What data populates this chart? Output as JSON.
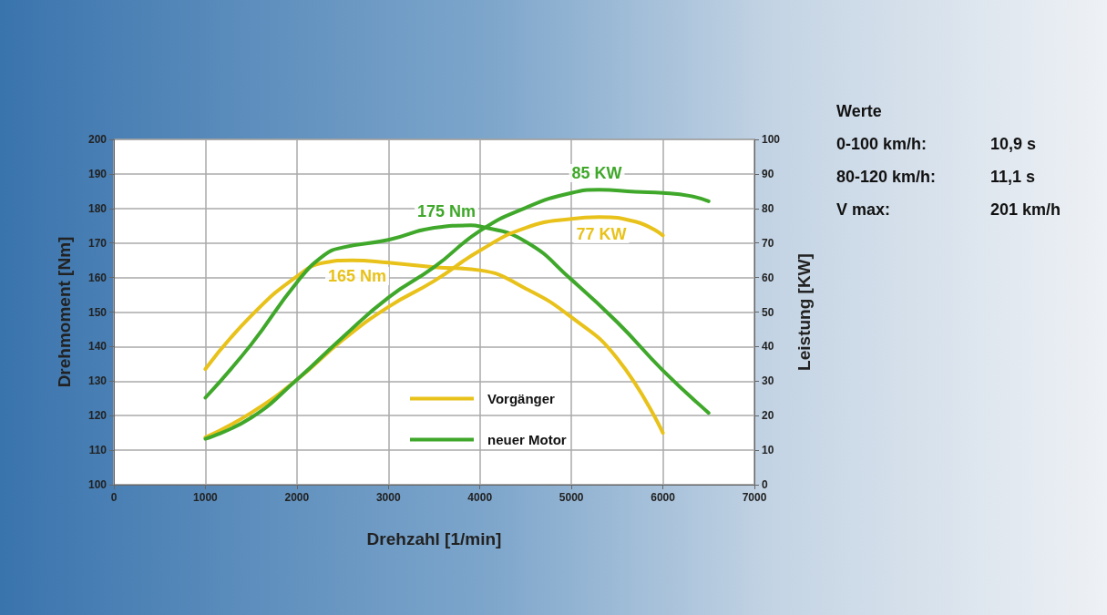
{
  "chart_data": {
    "type": "line",
    "xlabel": "Drehzahl [1/min]",
    "ylabel": "Drehmoment [Nm]",
    "y2label": "Leistung [KW]",
    "xlim": [
      0,
      7000
    ],
    "xticks": [
      0,
      1000,
      2000,
      3000,
      4000,
      5000,
      6000,
      7000
    ],
    "ylim": [
      100,
      200
    ],
    "yticks": [
      100,
      110,
      120,
      130,
      140,
      150,
      160,
      170,
      180,
      190,
      200
    ],
    "y2lim": [
      0,
      100
    ],
    "y2ticks": [
      0,
      10,
      20,
      30,
      40,
      50,
      60,
      70,
      80,
      90,
      100
    ],
    "grid": true,
    "legend": "bottom",
    "marker": "none",
    "line_style": "solid",
    "series": [
      {
        "name": "Vorgänger",
        "color": "#e8c21a",
        "x": [
          1000,
          1500,
          2000,
          2300,
          2600,
          3000,
          3500,
          4000,
          4500,
          5000,
          5500,
          6000
        ],
        "values": [
          133.5,
          148.9,
          160.3,
          164.3,
          165.0,
          164.3,
          163.0,
          162.1,
          156.8,
          148.5,
          136.6,
          115.0
        ]
      },
      {
        "name": "neuer Motor",
        "color": "#3fa82a",
        "x": [
          1000,
          1500,
          2000,
          2300,
          2500,
          3000,
          3500,
          3900,
          4000,
          4500,
          5000,
          5500,
          6000,
          6500
        ],
        "values": [
          125.2,
          140.6,
          158.6,
          166.5,
          168.7,
          170.9,
          174.4,
          175.1,
          174.8,
          170.4,
          159.4,
          147.1,
          133.1,
          120.8
        ]
      },
      {
        "color": "#e8c21a",
        "axis": "y2",
        "x": [
          1000,
          1500,
          2000,
          2500,
          3000,
          3500,
          4000,
          4500,
          5000,
          5300,
          5700,
          6000
        ],
        "values": [
          13.7,
          20.8,
          30.4,
          41.9,
          51.5,
          59.0,
          67.8,
          74.4,
          77.0,
          77.5,
          76.2,
          72.2
        ]
      },
      {
        "color": "#3fa82a",
        "axis": "y2",
        "x": [
          1000,
          1500,
          2000,
          2500,
          3000,
          3500,
          4000,
          4500,
          5000,
          5300,
          5700,
          6000,
          6300,
          6500
        ],
        "values": [
          13.3,
          19.4,
          30.4,
          42.7,
          54.2,
          63.0,
          73.5,
          80.2,
          84.5,
          85.4,
          84.8,
          84.5,
          83.6,
          82.1
        ]
      }
    ],
    "annotations": [
      "165 Nm",
      "175 Nm",
      "85 KW",
      "77 KW",
      "Werte",
      "0-100 km/h:",
      "10,9 s",
      "80-120 km/h:",
      "11,1 s",
      "V max:",
      "201 km/h"
    ]
  }
}
